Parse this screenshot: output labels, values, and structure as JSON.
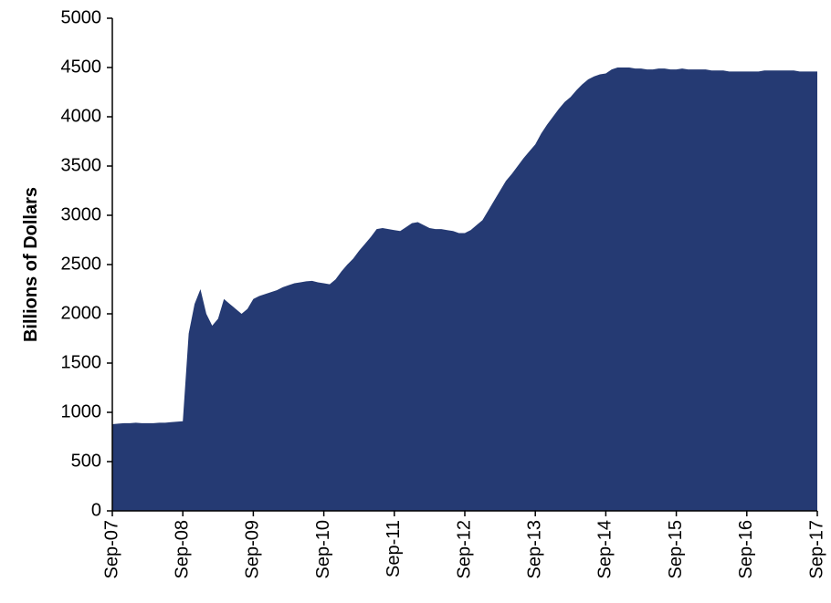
{
  "chart_data": {
    "type": "area",
    "y_label": "Billions of Dollars",
    "categories": [
      "Sep-07",
      null,
      null,
      null,
      null,
      null,
      null,
      null,
      null,
      null,
      null,
      null,
      "Sep-08",
      null,
      null,
      null,
      null,
      null,
      null,
      null,
      null,
      null,
      null,
      null,
      "Sep-09",
      null,
      null,
      null,
      null,
      null,
      null,
      null,
      null,
      null,
      null,
      null,
      "Sep-10",
      null,
      null,
      null,
      null,
      null,
      null,
      null,
      null,
      null,
      null,
      null,
      "Sep-11",
      null,
      null,
      null,
      null,
      null,
      null,
      null,
      null,
      null,
      null,
      null,
      "Sep-12",
      null,
      null,
      null,
      null,
      null,
      null,
      null,
      null,
      null,
      null,
      null,
      "Sep-13",
      null,
      null,
      null,
      null,
      null,
      null,
      null,
      null,
      null,
      null,
      null,
      "Sep-14",
      null,
      null,
      null,
      null,
      null,
      null,
      null,
      null,
      null,
      null,
      null,
      "Sep-15",
      null,
      null,
      null,
      null,
      null,
      null,
      null,
      null,
      null,
      null,
      null,
      "Sep-16",
      null,
      null,
      null,
      null,
      null,
      null,
      null,
      null,
      null,
      null,
      null,
      "Sep-17"
    ],
    "values": [
      880,
      885,
      890,
      890,
      895,
      890,
      890,
      890,
      895,
      895,
      900,
      905,
      910,
      1800,
      2100,
      2250,
      2000,
      1880,
      1950,
      2150,
      2100,
      2050,
      2000,
      2050,
      2150,
      2180,
      2200,
      2220,
      2240,
      2270,
      2290,
      2310,
      2320,
      2330,
      2335,
      2320,
      2310,
      2300,
      2350,
      2430,
      2500,
      2560,
      2640,
      2710,
      2780,
      2860,
      2870,
      2860,
      2850,
      2840,
      2880,
      2920,
      2930,
      2900,
      2870,
      2860,
      2860,
      2850,
      2840,
      2820,
      2820,
      2850,
      2900,
      2950,
      3050,
      3150,
      3250,
      3350,
      3420,
      3500,
      3580,
      3650,
      3720,
      3830,
      3920,
      4000,
      4080,
      4150,
      4200,
      4270,
      4330,
      4380,
      4410,
      4430,
      4440,
      4480,
      4500,
      4500,
      4500,
      4490,
      4490,
      4480,
      4480,
      4490,
      4490,
      4480,
      4480,
      4490,
      4480,
      4480,
      4480,
      4480,
      4470,
      4470,
      4470,
      4460,
      4460,
      4460,
      4460,
      4460,
      4460,
      4470,
      4470,
      4470,
      4470,
      4470,
      4470,
      4460,
      4460,
      4460,
      4460
    ],
    "color": "#253a73",
    "ylim": [
      0,
      5000
    ],
    "yticks": [
      0,
      500,
      1000,
      1500,
      2000,
      2500,
      3000,
      3500,
      4000,
      4500,
      5000
    ],
    "grid": false
  }
}
